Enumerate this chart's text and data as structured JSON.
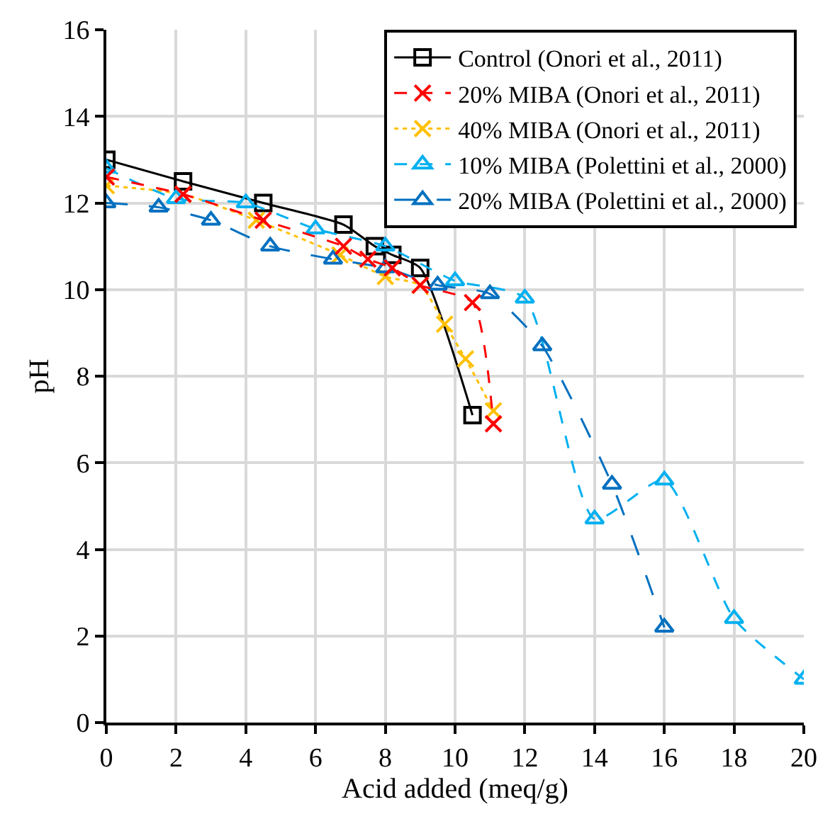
{
  "chart_data": {
    "type": "line",
    "xlabel": "Acid added (meq/g)",
    "ylabel": "pH",
    "xlim": [
      0,
      20
    ],
    "xticks": [
      0,
      2,
      4,
      6,
      8,
      10,
      12,
      14,
      16,
      18,
      20
    ],
    "ylim": [
      0,
      16
    ],
    "yticks": [
      0,
      2,
      4,
      6,
      8,
      10,
      12,
      14,
      16
    ],
    "grid": true,
    "legend": "top right",
    "series": [
      {
        "name": "Control (Onori et al., 2011)",
        "color": "#000000",
        "marker": "square",
        "line_style": "solid",
        "x": [
          0,
          2.2,
          4.5,
          6.8,
          7.7,
          8.2,
          9.0,
          10.5
        ],
        "values": [
          13.0,
          12.5,
          12.0,
          11.5,
          11.0,
          10.8,
          10.5,
          7.1
        ]
      },
      {
        "name": "20% MIBA (Onori et al., 2011)",
        "color": "#ff0000",
        "marker": "cross",
        "line_style": "dashed",
        "x": [
          0,
          2.2,
          4.5,
          6.8,
          7.5,
          8.2,
          9.0,
          10.5,
          11.1
        ],
        "values": [
          12.6,
          12.2,
          11.6,
          11.0,
          10.7,
          10.5,
          10.1,
          9.7,
          6.9
        ]
      },
      {
        "name": "40% MIBA (Onori et al., 2011)",
        "color": "#ffc000",
        "marker": "cross",
        "line_style": "dotted",
        "x": [
          0,
          2.2,
          4.3,
          6.7,
          8.0,
          9.0,
          9.7,
          10.3,
          11.1
        ],
        "values": [
          12.4,
          12.2,
          11.6,
          10.8,
          10.3,
          10.1,
          9.2,
          8.4,
          7.2
        ]
      },
      {
        "name": "10% MIBA (Polettini et al., 2000)",
        "color": "#00b0f0",
        "marker": "triangle",
        "line_style": "dashed",
        "x": [
          0,
          2,
          4,
          6,
          8,
          10,
          12,
          14,
          16,
          18,
          20
        ],
        "values": [
          12.8,
          12.1,
          12.0,
          11.4,
          11.0,
          10.2,
          9.8,
          4.7,
          5.6,
          2.4,
          1.0
        ]
      },
      {
        "name": "20% MIBA (Polettini et al., 2000)",
        "color": "#0070c0",
        "marker": "triangle",
        "line_style": "dashed",
        "x": [
          0,
          1.5,
          3.0,
          4.7,
          6.5,
          8.0,
          9.5,
          11.0,
          12.5,
          14.5,
          16.0
        ],
        "values": [
          12.0,
          11.9,
          11.6,
          11.0,
          10.7,
          10.5,
          10.1,
          9.9,
          8.7,
          5.5,
          2.2
        ]
      }
    ]
  }
}
